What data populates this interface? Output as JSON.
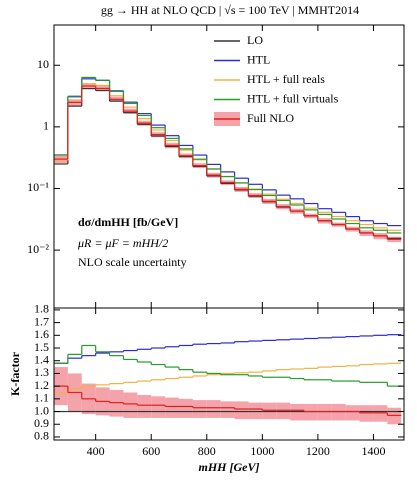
{
  "chart_data": [
    {
      "type": "histogram",
      "title": "gg → HH at NLO QCD | √s = 100 TeV | MMHT2014",
      "annotations": [
        "dσ/dmHH [fb/GeV]",
        "μR = μF = mHH/2",
        "NLO scale uncertainty"
      ],
      "bins": [
        250,
        300,
        350,
        400,
        450,
        500,
        550,
        600,
        650,
        700,
        750,
        800,
        850,
        900,
        950,
        1000,
        1050,
        1100,
        1150,
        1200,
        1250,
        1300,
        1350,
        1400,
        1450,
        1500
      ],
      "xlim": [
        250,
        1510
      ],
      "xticks": [
        400,
        600,
        800,
        1000,
        1200,
        1400
      ],
      "ylim": [
        0.00115,
        45
      ],
      "log_y": true,
      "yticks": [
        {
          "value": 0.01,
          "label": "10⁻²"
        },
        {
          "value": 0.1,
          "label": "10⁻¹"
        },
        1,
        10
      ],
      "legend": "upper right",
      "series": [
        {
          "name": "LO",
          "color": "#333333",
          "values": [
            0.25,
            2.17,
            4.18,
            3.89,
            2.62,
            1.7,
            1.1,
            0.71,
            0.48,
            0.33,
            0.228,
            0.16,
            0.121,
            0.095,
            0.075,
            0.061,
            0.05,
            0.043,
            0.036,
            0.03,
            0.026,
            0.022,
            0.019,
            0.017,
            0.0155
          ]
        },
        {
          "name": "HTL",
          "color": "#2b2bd6",
          "values": [
            0.35,
            3.08,
            6.02,
            5.68,
            3.85,
            2.52,
            1.64,
            1.07,
            0.72,
            0.5,
            0.349,
            0.246,
            0.186,
            0.147,
            0.117,
            0.095,
            0.078,
            0.068,
            0.057,
            0.047,
            0.041,
            0.035,
            0.03,
            0.027,
            0.025
          ]
        },
        {
          "name": "HTL + full reals",
          "color": "#f2b241",
          "values": [
            0.29,
            2.56,
            5.02,
            4.71,
            3.2,
            2.09,
            1.36,
            0.89,
            0.6,
            0.42,
            0.292,
            0.206,
            0.157,
            0.124,
            0.098,
            0.081,
            0.067,
            0.057,
            0.048,
            0.041,
            0.035,
            0.03,
            0.026,
            0.023,
            0.021
          ]
        },
        {
          "name": "HTL + full virtuals",
          "color": "#2a9a2a",
          "values": [
            0.35,
            3.15,
            6.35,
            5.72,
            3.77,
            2.4,
            1.53,
            0.97,
            0.65,
            0.44,
            0.299,
            0.208,
            0.156,
            0.123,
            0.096,
            0.077,
            0.064,
            0.054,
            0.045,
            0.038,
            0.032,
            0.027,
            0.023,
            0.021,
            0.019
          ]
        },
        {
          "name": "Full NLO",
          "color": "#e0201b",
          "band_color": "#f4a3aa",
          "values": [
            0.3,
            2.5,
            4.6,
            4.2,
            2.8,
            1.8,
            1.15,
            0.75,
            0.5,
            0.34,
            0.235,
            0.165,
            0.125,
            0.097,
            0.077,
            0.062,
            0.051,
            0.043,
            0.036,
            0.03,
            0.026,
            0.022,
            0.019,
            0.017,
            0.015
          ],
          "band_low": [
            0.26,
            2.2,
            4.1,
            3.8,
            2.55,
            1.63,
            1.04,
            0.68,
            0.45,
            0.31,
            0.214,
            0.15,
            0.114,
            0.088,
            0.07,
            0.056,
            0.046,
            0.039,
            0.033,
            0.027,
            0.024,
            0.02,
            0.017,
            0.015,
            0.0135
          ],
          "band_high": [
            0.34,
            2.8,
            5.1,
            4.6,
            3.08,
            1.98,
            1.26,
            0.82,
            0.55,
            0.37,
            0.257,
            0.18,
            0.136,
            0.106,
            0.084,
            0.068,
            0.056,
            0.047,
            0.039,
            0.033,
            0.028,
            0.024,
            0.021,
            0.019,
            0.0165
          ]
        }
      ]
    },
    {
      "type": "histogram",
      "ylabel": "K-factor",
      "xlabel": "mHH [GeV]",
      "bins": [
        250,
        300,
        350,
        400,
        450,
        500,
        550,
        600,
        650,
        700,
        750,
        800,
        850,
        900,
        950,
        1000,
        1050,
        1100,
        1150,
        1200,
        1250,
        1300,
        1350,
        1400,
        1450,
        1500
      ],
      "xlim": [
        250,
        1510
      ],
      "xticks": [
        400,
        600,
        800,
        1000,
        1200,
        1400
      ],
      "ylim": [
        0.776,
        1.815
      ],
      "yticks": [
        0.8,
        0.9,
        {
          "value": 1,
          "label": "1.0"
        },
        1.1,
        1.2,
        1.3,
        1.4,
        1.5,
        1.6,
        1.7,
        1.8
      ],
      "series": [
        {
          "color": "#333333",
          "values": [
            1,
            1,
            1,
            1,
            1,
            1,
            1,
            1,
            1,
            1,
            1,
            1,
            1,
            1,
            1,
            1,
            1,
            1,
            1,
            1,
            1,
            1,
            1,
            1,
            1
          ]
        },
        {
          "color": "#2b2bd6",
          "values": [
            1.38,
            1.42,
            1.44,
            1.46,
            1.47,
            1.48,
            1.49,
            1.5,
            1.51,
            1.52,
            1.53,
            1.535,
            1.54,
            1.55,
            1.555,
            1.56,
            1.565,
            1.57,
            1.575,
            1.58,
            1.585,
            1.59,
            1.595,
            1.6,
            1.605
          ]
        },
        {
          "color": "#f2b241",
          "values": [
            1.15,
            1.18,
            1.2,
            1.21,
            1.22,
            1.23,
            1.24,
            1.25,
            1.26,
            1.27,
            1.28,
            1.29,
            1.3,
            1.305,
            1.31,
            1.32,
            1.33,
            1.335,
            1.34,
            1.35,
            1.355,
            1.36,
            1.37,
            1.375,
            1.38
          ]
        },
        {
          "color": "#2a9a2a",
          "values": [
            1.38,
            1.45,
            1.52,
            1.47,
            1.44,
            1.41,
            1.39,
            1.37,
            1.35,
            1.33,
            1.31,
            1.3,
            1.29,
            1.29,
            1.28,
            1.27,
            1.27,
            1.26,
            1.25,
            1.25,
            1.24,
            1.24,
            1.23,
            1.23,
            1.2
          ]
        },
        {
          "color": "#e0201b",
          "band_color": "#f4a3aa",
          "values": [
            1.2,
            1.15,
            1.1,
            1.08,
            1.07,
            1.06,
            1.05,
            1.05,
            1.04,
            1.04,
            1.03,
            1.03,
            1.03,
            1.02,
            1.02,
            1.01,
            1.01,
            1.01,
            1.0,
            1.0,
            1.0,
            1.0,
            0.99,
            0.99,
            0.97
          ],
          "band_low": [
            1.05,
            1.0,
            0.98,
            0.97,
            0.96,
            0.95,
            0.95,
            0.95,
            0.95,
            0.95,
            0.95,
            0.95,
            0.95,
            0.94,
            0.94,
            0.94,
            0.94,
            0.93,
            0.93,
            0.93,
            0.93,
            0.93,
            0.92,
            0.92,
            0.9
          ],
          "band_high": [
            1.35,
            1.3,
            1.22,
            1.19,
            1.17,
            1.15,
            1.13,
            1.12,
            1.11,
            1.1,
            1.09,
            1.09,
            1.08,
            1.08,
            1.07,
            1.07,
            1.07,
            1.06,
            1.06,
            1.06,
            1.06,
            1.05,
            1.05,
            1.05,
            1.03
          ]
        }
      ]
    }
  ]
}
